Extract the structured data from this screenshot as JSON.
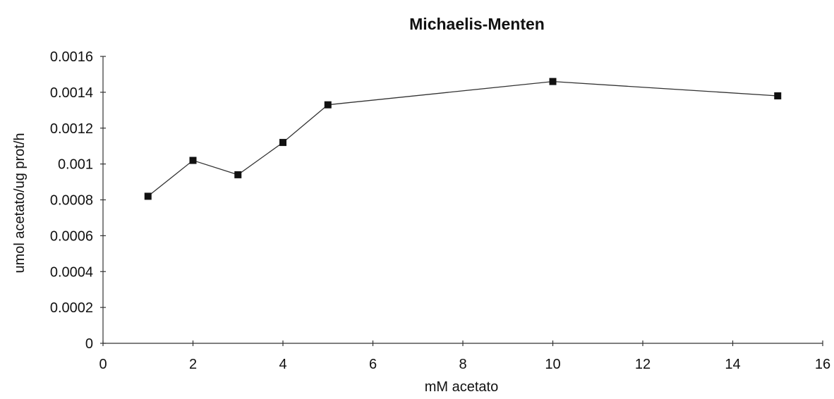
{
  "chart_data": {
    "type": "line",
    "title": "Michaelis-Menten",
    "xlabel": "mM acetato",
    "ylabel": "umol acetato/ug prot/h",
    "xlim": [
      0,
      16
    ],
    "ylim": [
      0,
      0.0016
    ],
    "xticks": [
      0,
      2,
      4,
      6,
      8,
      10,
      12,
      14,
      16
    ],
    "yticks": [
      0,
      0.0002,
      0.0004,
      0.0006,
      0.0008,
      0.001,
      0.0012,
      0.0014,
      0.0016
    ],
    "xtick_labels": [
      "0",
      "2",
      "4",
      "6",
      "8",
      "10",
      "12",
      "14",
      "16"
    ],
    "ytick_labels": [
      "0",
      "0.0002",
      "0.0004",
      "0.0006",
      "0.0008",
      "0.001",
      "0.0012",
      "0.0014",
      "0.0016"
    ],
    "grid": false,
    "legend": "none",
    "series": [
      {
        "x": [
          1,
          2,
          3,
          4,
          5,
          10,
          15
        ],
        "values": [
          0.00082,
          0.00102,
          0.00094,
          0.00112,
          0.00133,
          0.00146,
          0.00138
        ],
        "color": "#111111",
        "marker": "square"
      }
    ]
  }
}
